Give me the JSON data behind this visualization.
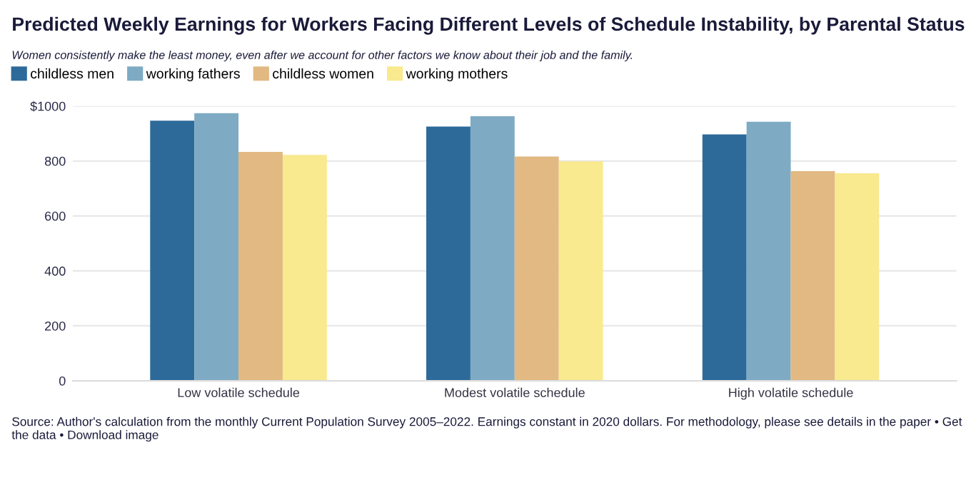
{
  "chart_data": {
    "type": "bar",
    "title": "Predicted Weekly Earnings for Workers Facing Different Levels of Schedule Instability, by Parental Status",
    "subtitle": "Women consistently make the least money, even after we account for other factors we know about their job and the family.",
    "categories": [
      "Low volatile schedule",
      "Modest volatile schedule",
      "High volatile schedule"
    ],
    "series": [
      {
        "name": "childless men",
        "color": "#2d6a9a",
        "values": [
          947,
          925,
          897
        ]
      },
      {
        "name": "working fathers",
        "color": "#7eaac4",
        "values": [
          974,
          963,
          943
        ]
      },
      {
        "name": "childless women",
        "color": "#e2b982",
        "values": [
          833,
          816,
          763
        ]
      },
      {
        "name": "working mothers",
        "color": "#f9e98f",
        "values": [
          822,
          799,
          755
        ]
      }
    ],
    "ylim": [
      0,
      1000
    ],
    "yticks": [
      0,
      200,
      400,
      600,
      800,
      {
        "value": 1000,
        "label": "$1000"
      }
    ],
    "grid": "y",
    "legend": "top left",
    "annotations": [
      "Source: Author's calculation from the monthly Current Population Survey 2005–2022. Earnings constant in 2020 dollars. For methodology, please see details in the paper • Get the data • Download image"
    ]
  }
}
